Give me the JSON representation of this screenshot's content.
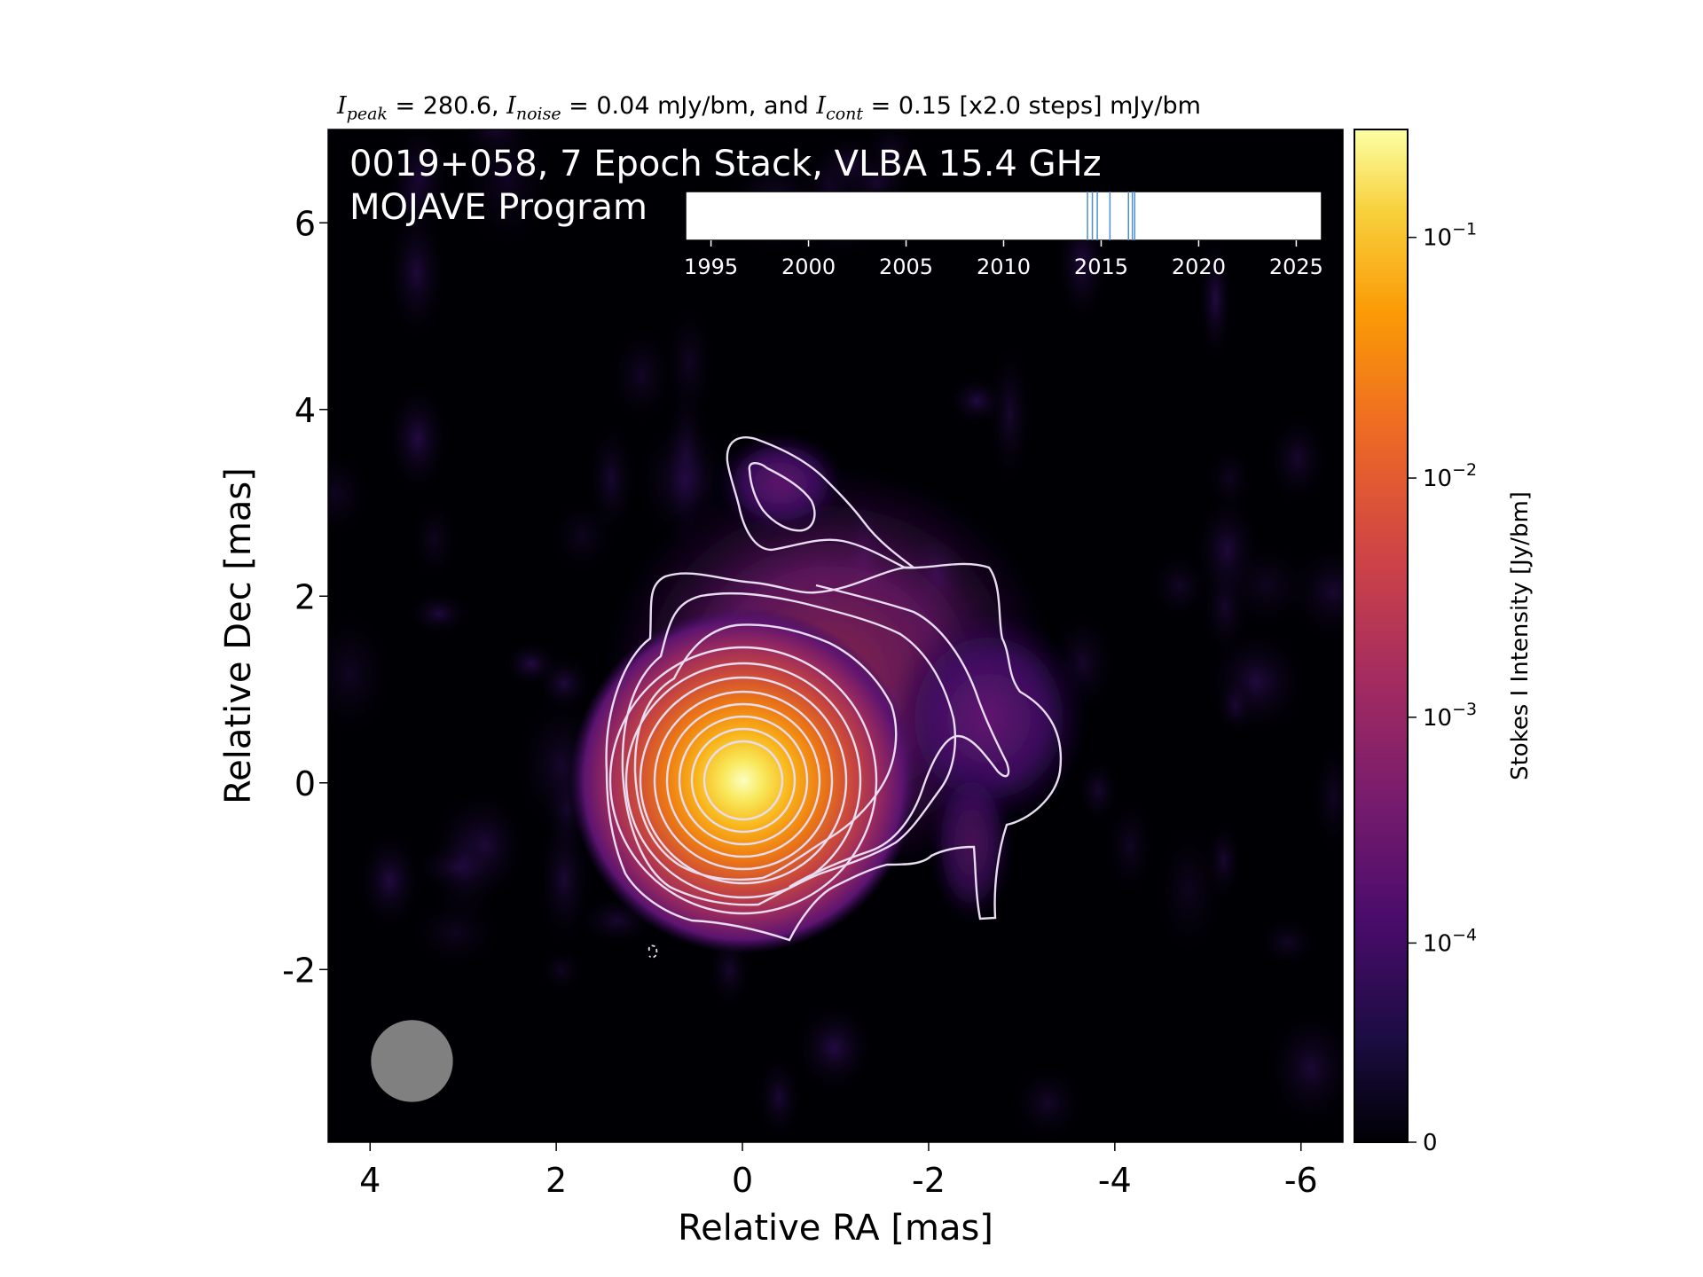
{
  "header": {
    "peak_sym": "I",
    "peak_sub": "peak",
    "peak_text": " = 280.6, ",
    "noise_sym": "I",
    "noise_sub": "noise",
    "noise_text": " = 0.04 mJy/bm, and ",
    "cont_sym": "I",
    "cont_sub": "cont",
    "cont_text": " = 0.15 [x2.0 steps] mJy/bm"
  },
  "panel": {
    "title_line1": "0019+058, 7 Epoch Stack, VLBA 15.4 GHz",
    "title_line2": "MOJAVE Program"
  },
  "chart_data": {
    "type": "heatmap",
    "source": "0019+058",
    "frequency": "15.4 GHz",
    "xlabel": "Relative RA [mas]",
    "ylabel": "Relative Dec [mas]",
    "xlim": [
      4.45,
      -6.45
    ],
    "ylim": [
      -3.85,
      7.0
    ],
    "xticks": [
      4,
      2,
      0,
      -2,
      -4,
      -6
    ],
    "yticks": [
      -2,
      0,
      2,
      4,
      6
    ],
    "xtick_labels": [
      "4",
      "2",
      "0",
      "-2",
      "-4",
      "-6"
    ],
    "ytick_labels": [
      "-2",
      "0",
      "2",
      "4",
      "6"
    ],
    "colorbar": {
      "label": "Stokes I Intensity [Jy/bm]",
      "scale": "log",
      "colormap": "inferno",
      "range": [
        0,
        0.2806
      ],
      "ticks": [
        {
          "value": 0,
          "base": "0",
          "exp": ""
        },
        {
          "value": 0.0001,
          "base": "10",
          "exp": "−4"
        },
        {
          "value": 0.001,
          "base": "10",
          "exp": "−3"
        },
        {
          "value": 0.01,
          "base": "10",
          "exp": "−2"
        },
        {
          "value": 0.1,
          "base": "10",
          "exp": "−1"
        }
      ]
    },
    "peak_mJy_per_beam": 280.6,
    "noise_mJy_per_beam": 0.04,
    "lowest_contour_mJy_per_beam": 0.15,
    "contour_step_factor": 2.0,
    "components": [
      {
        "ra": 0.0,
        "dec": 0.0,
        "flux_Jy": 0.2806
      },
      {
        "ra": -0.35,
        "dec": 3.1,
        "flux_Jy": 0.0004
      },
      {
        "ra": -3.1,
        "dec": 0.1,
        "flux_Jy": 0.0007
      }
    ],
    "beam": {
      "ra": 3.55,
      "dec": -2.98,
      "diameter_mas": 0.88,
      "color": "#808080"
    },
    "epoch_timeline": {
      "xlim": [
        1993.7,
        2026.3
      ],
      "ticks": [
        1995,
        2000,
        2005,
        2010,
        2015,
        2020,
        2025
      ],
      "epochs": [
        2014.3,
        2014.55,
        2014.8,
        2015.45,
        2016.4,
        2016.6,
        2016.72
      ],
      "epoch_color": "#4f8fcc"
    },
    "contour_color": "#e8dcf0"
  }
}
